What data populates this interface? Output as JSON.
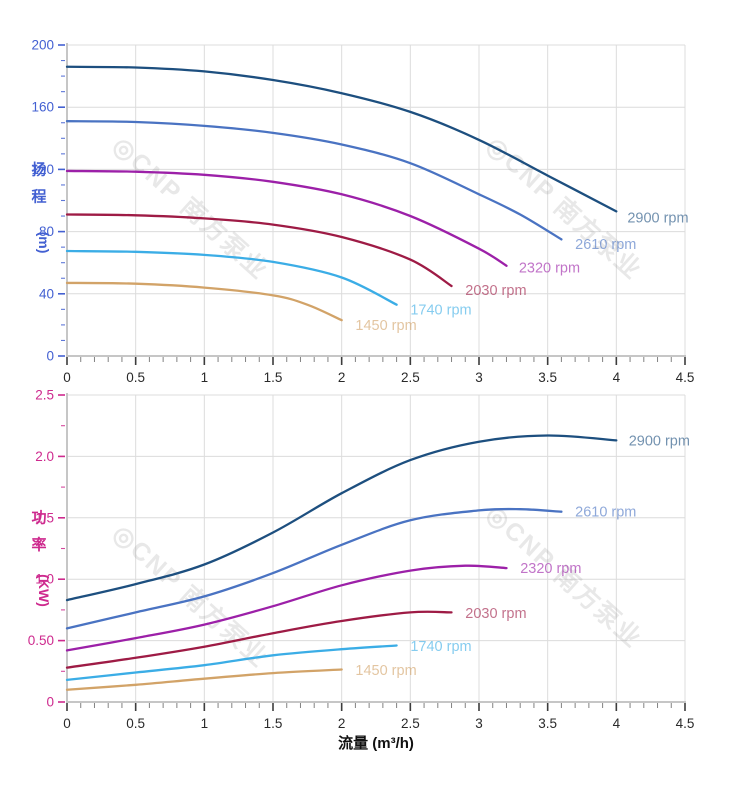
{
  "page": {
    "background": "#ffffff"
  },
  "watermark": {
    "text": "◎CNP 南方泵业",
    "color": "#8f8f8f",
    "opacity": 0.2
  },
  "chart_data": [
    {
      "type": "line",
      "id": "head-curve-chart",
      "ylabel_chars": [
        "扬",
        "程"
      ],
      "ylabel_unit": "(m)",
      "axis_color": "#4360d2",
      "tick_label_color_x": "#2a2a2a",
      "grid_color": "#dcdcdc",
      "spine_color": "#c6c6c6",
      "x": {
        "min": 0,
        "max": 4.5,
        "major": 0.5,
        "minor": 0.1,
        "labels": [
          "0",
          "0.5",
          "1",
          "1.5",
          "2",
          "2.5",
          "3",
          "3.5",
          "4",
          "4.5"
        ]
      },
      "y": {
        "min": 0,
        "max": 200,
        "major": 40,
        "minor": 10,
        "labels": [
          "0",
          "40",
          "80",
          "120",
          "160",
          "200"
        ]
      },
      "watermarks": [
        [
          0.86,
          91
        ],
        [
          3.58,
          91
        ]
      ],
      "series": [
        {
          "name": "2900 rpm",
          "color": "#1d4f7f",
          "points": [
            [
              0,
              186
            ],
            [
              0.5,
              185.5
            ],
            [
              1,
              183
            ],
            [
              1.5,
              177.5
            ],
            [
              2,
              169
            ],
            [
              2.5,
              157
            ],
            [
              3,
              139
            ],
            [
              3.5,
              116
            ],
            [
              4,
              93
            ]
          ],
          "label": [
            4.08,
            89
          ]
        },
        {
          "name": "2610 rpm",
          "color": "#4a73c2",
          "points": [
            [
              0,
              151
            ],
            [
              0.5,
              150.5
            ],
            [
              1,
              148
            ],
            [
              1.5,
              143.5
            ],
            [
              2,
              136
            ],
            [
              2.5,
              124
            ],
            [
              3,
              104
            ],
            [
              3.3,
              91
            ],
            [
              3.6,
              75
            ]
          ],
          "label": [
            3.7,
            72
          ]
        },
        {
          "name": "2320 rpm",
          "color": "#9c20a8",
          "points": [
            [
              0,
              119
            ],
            [
              0.5,
              118.5
            ],
            [
              1,
              116.5
            ],
            [
              1.5,
              112
            ],
            [
              2,
              104
            ],
            [
              2.5,
              90
            ],
            [
              3,
              69
            ],
            [
              3.2,
              58
            ]
          ],
          "label": [
            3.29,
            57
          ]
        },
        {
          "name": "2030 rpm",
          "color": "#9e1b45",
          "points": [
            [
              0,
              91
            ],
            [
              0.5,
              90.5
            ],
            [
              1,
              88.5
            ],
            [
              1.5,
              84.5
            ],
            [
              2,
              76.5
            ],
            [
              2.5,
              62
            ],
            [
              2.8,
              45
            ]
          ],
          "label": [
            2.9,
            42.5
          ]
        },
        {
          "name": "1740 rpm",
          "color": "#3bade6",
          "points": [
            [
              0,
              67.5
            ],
            [
              0.5,
              67
            ],
            [
              1,
              65
            ],
            [
              1.5,
              60.5
            ],
            [
              2,
              50.5
            ],
            [
              2.4,
              33
            ]
          ],
          "label": [
            2.5,
            30
          ]
        },
        {
          "name": "1450 rpm",
          "color": "#d2a368",
          "points": [
            [
              0,
              47
            ],
            [
              0.5,
              46.5
            ],
            [
              1,
              44
            ],
            [
              1.5,
              39
            ],
            [
              1.75,
              33
            ],
            [
              2,
              23
            ]
          ],
          "label": [
            2.1,
            20
          ]
        }
      ]
    },
    {
      "type": "line",
      "id": "power-curve-chart",
      "ylabel_chars": [
        "功",
        "率"
      ],
      "ylabel_unit": "(KW)",
      "xlabel": "流量 (m³/h)",
      "axis_color": "#ce2a8e",
      "tick_label_color_x": "#2a2a2a",
      "grid_color": "#dcdcdc",
      "spine_color": "#c6c6c6",
      "x": {
        "min": 0,
        "max": 4.5,
        "major": 0.5,
        "minor": 0.1,
        "labels": [
          "0",
          "0.5",
          "1",
          "1.5",
          "2",
          "2.5",
          "3",
          "3.5",
          "4",
          "4.5"
        ]
      },
      "y": {
        "min": 0,
        "max": 2.5,
        "major": 0.5,
        "minor": 0.25,
        "labels": [
          "0",
          "0.50",
          "1.0",
          "1.5",
          "2.0",
          "2.5"
        ]
      },
      "watermarks": [
        [
          0.86,
          0.81
        ],
        [
          3.58,
          0.97
        ]
      ],
      "series": [
        {
          "name": "2900 rpm",
          "color": "#1d4f7f",
          "points": [
            [
              0,
              0.83
            ],
            [
              0.5,
              0.96
            ],
            [
              1,
              1.12
            ],
            [
              1.5,
              1.38
            ],
            [
              2,
              1.7
            ],
            [
              2.5,
              1.97
            ],
            [
              3,
              2.12
            ],
            [
              3.5,
              2.17
            ],
            [
              4,
              2.13
            ]
          ],
          "label": [
            4.09,
            2.13
          ]
        },
        {
          "name": "2610 rpm",
          "color": "#4a73c2",
          "points": [
            [
              0,
              0.6
            ],
            [
              0.5,
              0.73
            ],
            [
              1,
              0.86
            ],
            [
              1.5,
              1.05
            ],
            [
              2,
              1.28
            ],
            [
              2.5,
              1.48
            ],
            [
              3,
              1.56
            ],
            [
              3.3,
              1.57
            ],
            [
              3.6,
              1.55
            ]
          ],
          "label": [
            3.7,
            1.55
          ]
        },
        {
          "name": "2320 rpm",
          "color": "#9c20a8",
          "points": [
            [
              0,
              0.42
            ],
            [
              0.5,
              0.52
            ],
            [
              1,
              0.63
            ],
            [
              1.5,
              0.78
            ],
            [
              2,
              0.95
            ],
            [
              2.5,
              1.07
            ],
            [
              2.9,
              1.11
            ],
            [
              3.2,
              1.09
            ]
          ],
          "label": [
            3.3,
            1.09
          ]
        },
        {
          "name": "2030 rpm",
          "color": "#9e1b45",
          "points": [
            [
              0,
              0.28
            ],
            [
              0.5,
              0.36
            ],
            [
              1,
              0.45
            ],
            [
              1.5,
              0.56
            ],
            [
              2,
              0.66
            ],
            [
              2.5,
              0.73
            ],
            [
              2.8,
              0.73
            ]
          ],
          "label": [
            2.9,
            0.725
          ]
        },
        {
          "name": "1740 rpm",
          "color": "#3bade6",
          "points": [
            [
              0,
              0.18
            ],
            [
              0.5,
              0.24
            ],
            [
              1,
              0.3
            ],
            [
              1.5,
              0.38
            ],
            [
              2,
              0.43
            ],
            [
              2.4,
              0.46
            ]
          ],
          "label": [
            2.5,
            0.455
          ]
        },
        {
          "name": "1450 rpm",
          "color": "#d2a368",
          "points": [
            [
              0,
              0.1
            ],
            [
              0.5,
              0.14
            ],
            [
              1,
              0.19
            ],
            [
              1.5,
              0.235
            ],
            [
              2,
              0.265
            ]
          ],
          "label": [
            2.1,
            0.26
          ]
        }
      ]
    }
  ]
}
